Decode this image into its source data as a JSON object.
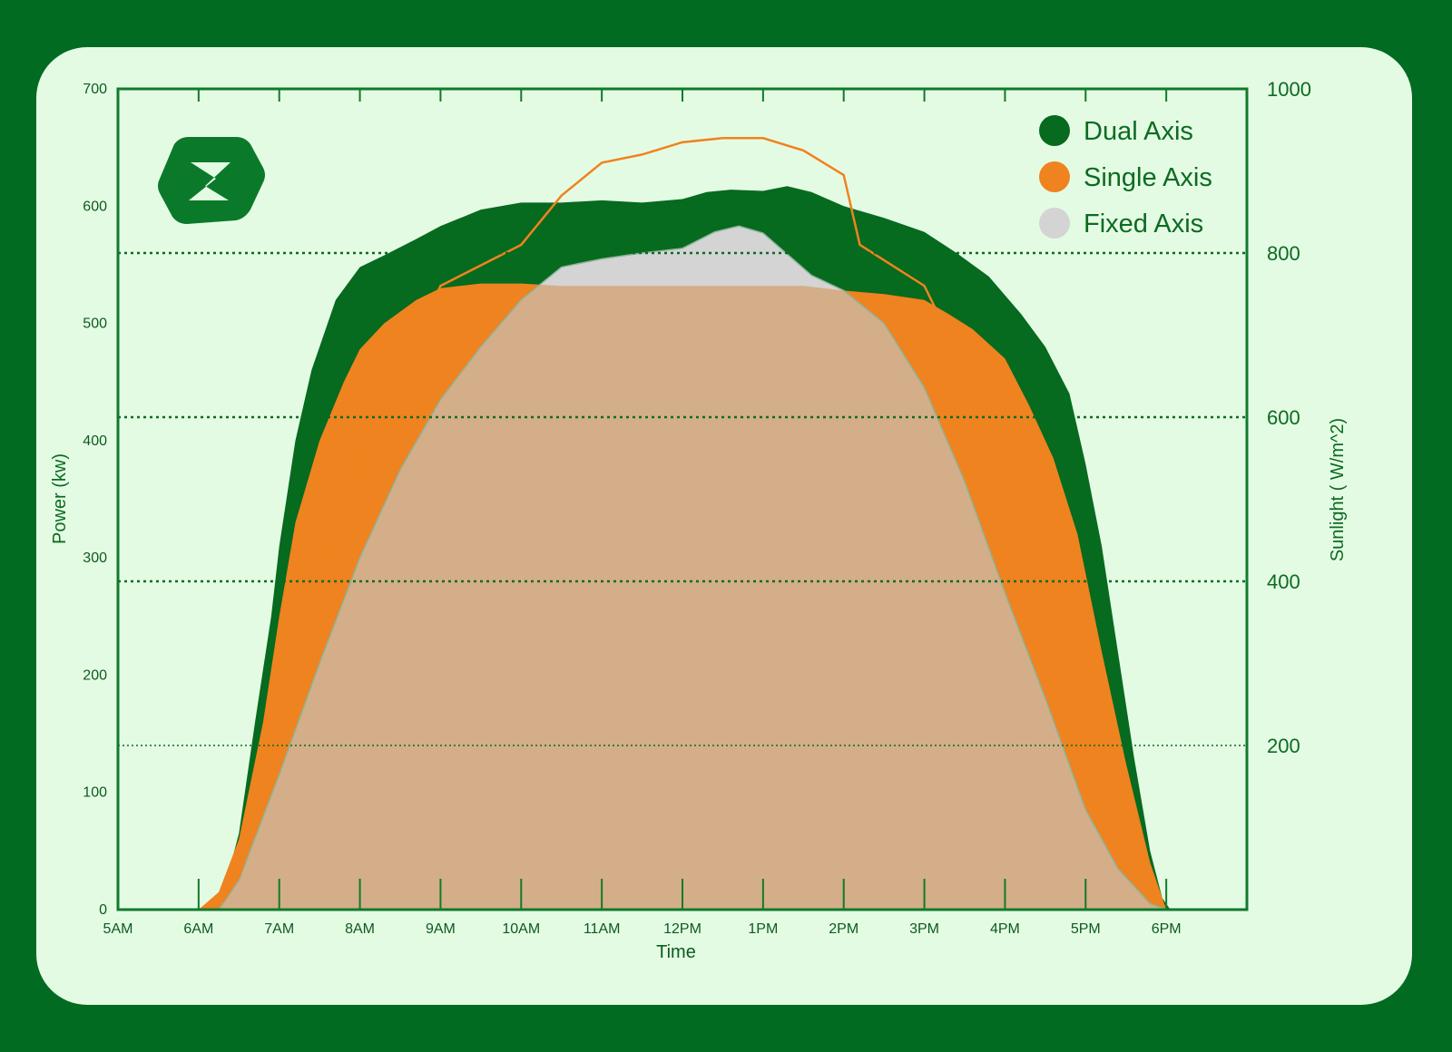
{
  "colors": {
    "background": "#016b22",
    "card": "#e4fbe3",
    "axis": "#117a2c",
    "dual": "#066a1f",
    "single": "#ef831f",
    "fixed": "#d4d4d4",
    "overlap": "#d4ae88"
  },
  "logo": {
    "icon": "lightning-z-logo-icon"
  },
  "chart_data": {
    "type": "area",
    "xlabel": "Time",
    "ylabel": "Power (kw)",
    "y2label": "Sunlight ( W/m^2)",
    "x_ticks": [
      "5AM",
      "6AM",
      "7AM",
      "8AM",
      "9AM",
      "10AM",
      "11AM",
      "12PM",
      "1PM",
      "2PM",
      "3PM",
      "4PM",
      "5PM",
      "6PM"
    ],
    "xlim": [
      5,
      19
    ],
    "ylim": [
      0,
      700
    ],
    "y_ticks": [
      0,
      100,
      200,
      300,
      400,
      500,
      600,
      700
    ],
    "y2_ticks": [
      200,
      400,
      600,
      800,
      1000
    ],
    "y2lim": [
      0,
      1000
    ],
    "grid": "dotted horizontal",
    "legend": {
      "placement": "top-right",
      "entries": [
        "Dual Axis",
        "Single Axis",
        "Fixed Axis"
      ]
    },
    "series": [
      {
        "name": "Dual Axis",
        "x": [
          6.25,
          6.5,
          6.7,
          6.9,
          7.0,
          7.2,
          7.4,
          7.7,
          8.0,
          8.3,
          8.7,
          9.0,
          9.5,
          10.0,
          10.5,
          11.0,
          11.5,
          12.0,
          12.3,
          12.6,
          13.0,
          13.3,
          13.6,
          14.0,
          14.5,
          15.0,
          15.4,
          15.8,
          16.2,
          16.5,
          16.8,
          17.0,
          17.2,
          17.4,
          17.6,
          17.8,
          17.95,
          18.05
        ],
        "values": [
          0,
          65,
          160,
          250,
          310,
          400,
          460,
          520,
          548,
          558,
          572,
          583,
          597,
          603,
          603,
          605,
          603,
          606,
          612,
          614,
          613,
          617,
          612,
          600,
          590,
          578,
          560,
          540,
          508,
          480,
          440,
          380,
          310,
          220,
          130,
          50,
          10,
          0
        ]
      },
      {
        "name": "Single Axis",
        "x": [
          6.0,
          6.25,
          6.5,
          6.8,
          7.0,
          7.2,
          7.5,
          7.8,
          8.0,
          8.3,
          8.7,
          9.0,
          9.5,
          10.0,
          10.5,
          11.0,
          11.5,
          12.0,
          12.5,
          13.0,
          13.5,
          14.0,
          14.5,
          15.0,
          15.3,
          15.6,
          16.0,
          16.3,
          16.6,
          16.9,
          17.2,
          17.5,
          17.8,
          18.0
        ],
        "values": [
          0,
          15,
          60,
          160,
          250,
          330,
          400,
          450,
          478,
          500,
          520,
          530,
          534,
          534,
          532,
          532,
          532,
          532,
          532,
          532,
          532,
          528,
          525,
          520,
          508,
          495,
          470,
          430,
          385,
          320,
          220,
          125,
          40,
          0
        ]
      },
      {
        "name": "Fixed Axis",
        "x": [
          6.25,
          6.5,
          7.0,
          7.5,
          8.0,
          8.5,
          9.0,
          9.5,
          10.0,
          10.5,
          11.0,
          11.5,
          12.0,
          12.4,
          12.7,
          13.0,
          13.3,
          13.6,
          14.0,
          14.5,
          15.0,
          15.5,
          16.0,
          16.5,
          17.0,
          17.4,
          17.8,
          18.0
        ],
        "values": [
          0,
          25,
          115,
          210,
          300,
          375,
          435,
          480,
          520,
          548,
          555,
          560,
          564,
          578,
          583,
          577,
          559,
          541,
          528,
          500,
          445,
          365,
          270,
          180,
          85,
          35,
          5,
          0
        ]
      },
      {
        "name": "Sunlight",
        "axis": "y2",
        "x": [
          6.0,
          6.3,
          6.5,
          7.0,
          8.0,
          9.0,
          10.0,
          10.5,
          11.0,
          11.5,
          12.0,
          12.5,
          13.0,
          13.5,
          14.0,
          14.2,
          15.0,
          16.0,
          17.0,
          18.0
        ],
        "values": [
          0,
          10,
          40,
          180,
          560,
          760,
          810,
          870,
          910,
          920,
          935,
          940,
          940,
          925,
          895,
          810,
          760,
          560,
          160,
          0
        ]
      }
    ]
  }
}
